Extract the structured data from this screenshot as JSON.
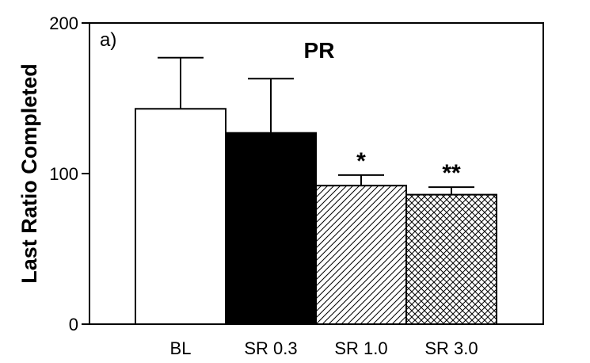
{
  "chart_data": {
    "type": "bar",
    "panel_label": "a)",
    "title": "PR",
    "ylabel": "Last Ratio Completed",
    "xlabel": "",
    "ylim": [
      0,
      200
    ],
    "yticks": [
      0,
      100,
      200
    ],
    "categories": [
      "BL",
      "SR 0.3",
      "SR 1.0",
      "SR 3.0"
    ],
    "values": [
      143,
      127,
      92,
      86
    ],
    "error_upper": [
      177,
      163,
      99,
      91
    ],
    "fills": [
      "white",
      "black",
      "diagonal-hatch",
      "cross-hatch"
    ],
    "significance": [
      "",
      "",
      "*",
      "**"
    ],
    "grid": false
  }
}
